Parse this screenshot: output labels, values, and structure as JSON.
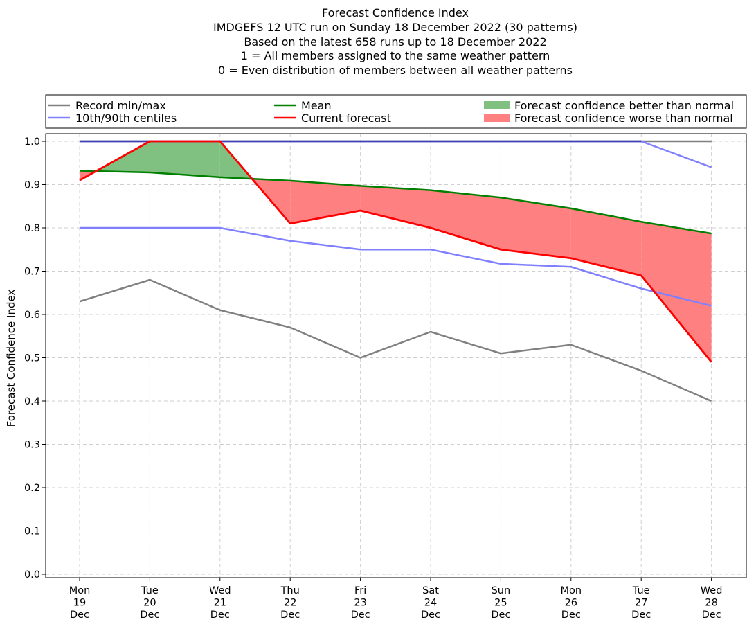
{
  "chart_data": {
    "type": "line",
    "title": [
      "Forecast Confidence Index",
      "IMDGEFS 12 UTC run on Sunday 18 December 2022 (30 patterns)",
      "Based on the latest 658 runs up to 18 December 2022",
      "1 = All members assigned to the same weather pattern",
      "0 = Even distribution of members between all weather patterns"
    ],
    "ylabel": "Forecast Confidence Index",
    "xlabel": "",
    "ylim": [
      0.0,
      1.0
    ],
    "yticks": [
      "0.0",
      "0.1",
      "0.2",
      "0.3",
      "0.4",
      "0.5",
      "0.6",
      "0.7",
      "0.8",
      "0.9",
      "1.0"
    ],
    "categories": [
      [
        "Mon",
        "19",
        "Dec"
      ],
      [
        "Tue",
        "20",
        "Dec"
      ],
      [
        "Wed",
        "21",
        "Dec"
      ],
      [
        "Thu",
        "22",
        "Dec"
      ],
      [
        "Fri",
        "23",
        "Dec"
      ],
      [
        "Sat",
        "24",
        "Dec"
      ],
      [
        "Sun",
        "25",
        "Dec"
      ],
      [
        "Mon",
        "26",
        "Dec"
      ],
      [
        "Tue",
        "27",
        "Dec"
      ],
      [
        "Wed",
        "28",
        "Dec"
      ]
    ],
    "grid": true,
    "legend_position": "top, above plot, 3 columns",
    "colors": {
      "record": "#808080",
      "centile": "#8080ff",
      "mean": "#008000",
      "current": "#ff0000",
      "better_fill": "#80c080",
      "worse_fill": "#ff8080",
      "max_line": "#4040b0"
    },
    "series": [
      {
        "name": "record_max",
        "values": [
          1.0,
          1.0,
          1.0,
          1.0,
          1.0,
          1.0,
          1.0,
          1.0,
          1.0,
          1.0
        ]
      },
      {
        "name": "record_min",
        "values": [
          0.63,
          0.68,
          0.61,
          0.57,
          0.5,
          0.56,
          0.51,
          0.53,
          0.47,
          0.4
        ]
      },
      {
        "name": "centile_90",
        "values": [
          1.0,
          1.0,
          1.0,
          1.0,
          1.0,
          1.0,
          1.0,
          1.0,
          1.0,
          0.94
        ]
      },
      {
        "name": "centile_10",
        "values": [
          0.8,
          0.8,
          0.8,
          0.77,
          0.75,
          0.75,
          0.717,
          0.71,
          0.66,
          0.62
        ]
      },
      {
        "name": "mean",
        "values": [
          0.932,
          0.928,
          0.917,
          0.909,
          0.897,
          0.887,
          0.87,
          0.845,
          0.814,
          0.787
        ]
      },
      {
        "name": "current",
        "values": [
          0.91,
          1.0,
          1.0,
          0.81,
          0.84,
          0.8,
          0.75,
          0.73,
          0.69,
          0.49
        ]
      }
    ],
    "legend": [
      {
        "label": "Record min/max",
        "kind": "line",
        "color_key": "record"
      },
      {
        "label": "Mean",
        "kind": "line",
        "color_key": "mean"
      },
      {
        "label": "Forecast confidence better than normal",
        "kind": "patch",
        "color_key": "better_fill"
      },
      {
        "label": "10th/90th centiles",
        "kind": "line",
        "color_key": "centile"
      },
      {
        "label": "Current forecast",
        "kind": "line",
        "color_key": "current"
      },
      {
        "label": "Forecast confidence worse than normal",
        "kind": "patch",
        "color_key": "worse_fill"
      }
    ]
  }
}
